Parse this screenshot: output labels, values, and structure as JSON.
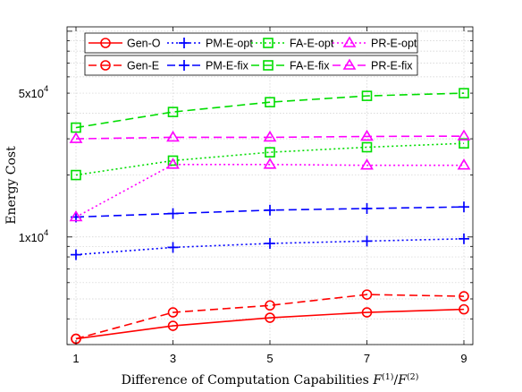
{
  "chart_data": {
    "type": "line",
    "xlabel": "Difference of Computation Capabilities",
    "xlabel_math": {
      "base1": "F",
      "sup1": "(1)",
      "sep": "/",
      "base2": "F",
      "sup2": "(2)"
    },
    "ylabel": "Energy Cost",
    "x": [
      1,
      3,
      5,
      7,
      9
    ],
    "x_ticks": [
      "1",
      "3",
      "5",
      "7",
      "9"
    ],
    "y_ticks": [
      {
        "value": 10000,
        "label": "1x10",
        "exp": "4"
      },
      {
        "value": 50000,
        "label": "5x10",
        "exp": "4"
      }
    ],
    "xlim": [
      1,
      9
    ],
    "ylim": [
      3000,
      105000
    ],
    "yscale": "log",
    "grid": true,
    "legend_placement": "top",
    "series": [
      {
        "name": "Gen-O",
        "color": "#ff0000",
        "style": "solid",
        "marker": "circle",
        "values": [
          3200,
          3700,
          4050,
          4300,
          4450
        ]
      },
      {
        "name": "Gen-E",
        "color": "#ff0000",
        "style": "dashed",
        "marker": "circle",
        "values": [
          3200,
          4300,
          4650,
          5250,
          5150
        ]
      },
      {
        "name": "PM-E-opt",
        "color": "#0000ff",
        "style": "dotted",
        "marker": "plus",
        "values": [
          8200,
          8900,
          9300,
          9550,
          9800
        ]
      },
      {
        "name": "PM-E-fix",
        "color": "#0000ff",
        "style": "dashed",
        "marker": "plus",
        "values": [
          12500,
          13000,
          13500,
          13750,
          14000
        ]
      },
      {
        "name": "FA-E-opt",
        "color": "#00dd00",
        "style": "dotted",
        "marker": "square",
        "values": [
          20000,
          23500,
          25800,
          27300,
          28500
        ]
      },
      {
        "name": "FA-E-fix",
        "color": "#00dd00",
        "style": "dashed",
        "marker": "square",
        "values": [
          34000,
          40500,
          45200,
          48500,
          50000
        ]
      },
      {
        "name": "PR-E-opt",
        "color": "#ff00ff",
        "style": "dotted",
        "marker": "triangle",
        "values": [
          12500,
          22500,
          22500,
          22300,
          22300
        ]
      },
      {
        "name": "PR-E-fix",
        "color": "#ff00ff",
        "style": "dashed",
        "marker": "triangle",
        "values": [
          30000,
          30500,
          30500,
          30800,
          30900
        ]
      }
    ]
  }
}
